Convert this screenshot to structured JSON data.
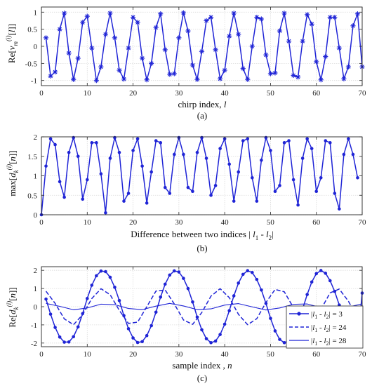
{
  "figure": {
    "captions": [
      "(a)",
      "(b)",
      "(c)"
    ]
  },
  "chart_data": [
    {
      "type": "line",
      "marker": "asterisk",
      "color": "#1f24d6",
      "xlabel": "chirp index,  l",
      "ylabel": "Re[v_m^(i)[l]]",
      "xlim": [
        0,
        70
      ],
      "ylim": [
        -1.15,
        1.15
      ],
      "xticks": [
        0,
        10,
        20,
        30,
        40,
        50,
        60,
        70
      ],
      "yticks": [
        -1,
        -0.5,
        0,
        0.5,
        1
      ],
      "x": [
        1,
        2,
        3,
        4,
        5,
        6,
        7,
        8,
        9,
        10,
        11,
        12,
        13,
        14,
        15,
        16,
        17,
        18,
        19,
        20,
        21,
        22,
        23,
        24,
        25,
        26,
        27,
        28,
        29,
        30,
        31,
        32,
        33,
        34,
        35,
        36,
        37,
        38,
        39,
        40,
        41,
        42,
        43,
        44,
        45,
        46,
        47,
        48,
        49,
        50,
        51,
        52,
        53,
        54,
        55,
        56,
        57,
        58,
        59,
        60,
        61,
        62,
        63,
        64,
        65,
        66,
        67,
        68,
        69,
        70
      ],
      "series": [
        {
          "values": [
            0.25,
            -0.87,
            -0.75,
            0.5,
            0.97,
            -0.2,
            -0.97,
            -0.35,
            0.7,
            0.88,
            -0.05,
            -1.0,
            -0.6,
            0.35,
            0.97,
            0.25,
            -0.7,
            -0.96,
            -0.05,
            0.85,
            0.7,
            -0.35,
            -0.98,
            -0.5,
            0.55,
            0.95,
            -0.1,
            -0.82,
            -0.8,
            0.25,
            0.98,
            0.45,
            -0.55,
            -0.97,
            -0.15,
            0.75,
            0.85,
            -0.1,
            -0.95,
            -0.7,
            0.3,
            0.97,
            0.35,
            -0.65,
            -0.97,
            0.0,
            0.85,
            0.8,
            -0.25,
            -0.8,
            -0.78,
            0.45,
            0.97,
            0.15,
            -0.85,
            -0.9,
            0.15,
            0.93,
            0.65,
            -0.45,
            -0.98,
            -0.3,
            0.85,
            0.85,
            -0.05,
            -0.95,
            -0.6,
            0.6,
            0.95,
            -0.6
          ]
        }
      ],
      "caption": "(a)"
    },
    {
      "type": "line",
      "marker": "dot",
      "color": "#1f24d6",
      "xlabel": "Difference between two indices | l_1 - l_2|",
      "ylabel": "max[d_k^(i)[n]]",
      "xlim": [
        0,
        70
      ],
      "ylim": [
        0,
        2
      ],
      "xticks": [
        0,
        10,
        20,
        30,
        40,
        50,
        60,
        70
      ],
      "yticks": [
        0,
        0.5,
        1,
        1.5,
        2
      ],
      "x": [
        0,
        1,
        2,
        3,
        4,
        5,
        6,
        7,
        8,
        9,
        10,
        11,
        12,
        13,
        14,
        15,
        16,
        17,
        18,
        19,
        20,
        21,
        22,
        23,
        24,
        25,
        26,
        27,
        28,
        29,
        30,
        31,
        32,
        33,
        34,
        35,
        36,
        37,
        38,
        39,
        40,
        41,
        42,
        43,
        44,
        45,
        46,
        47,
        48,
        49,
        50,
        51,
        52,
        53,
        54,
        55,
        56,
        57,
        58,
        59,
        60,
        61,
        62,
        63,
        64,
        65,
        66,
        67,
        68,
        69
      ],
      "series": [
        {
          "values": [
            0.0,
            1.25,
            1.95,
            1.8,
            0.85,
            0.45,
            1.6,
            1.98,
            1.5,
            0.4,
            0.9,
            1.85,
            1.85,
            1.05,
            0.05,
            1.45,
            1.98,
            1.6,
            0.35,
            0.55,
            1.65,
            1.95,
            1.25,
            0.3,
            1.1,
            1.9,
            1.85,
            0.7,
            0.55,
            1.55,
            1.98,
            1.55,
            0.7,
            0.6,
            1.6,
            1.98,
            1.45,
            0.5,
            0.75,
            1.7,
            1.95,
            1.3,
            0.35,
            1.1,
            1.9,
            1.95,
            0.95,
            0.35,
            1.4,
            1.98,
            1.65,
            0.6,
            0.75,
            1.85,
            1.9,
            0.9,
            0.25,
            1.45,
            1.95,
            1.7,
            0.6,
            0.95,
            1.9,
            1.85,
            0.55,
            0.15,
            1.55,
            1.95,
            1.55,
            0.95
          ]
        }
      ],
      "caption": "(b)"
    },
    {
      "type": "line",
      "xlabel": "sample index ,  n",
      "ylabel": "Re[d_k^(i)[n]]",
      "xlim": [
        0,
        70
      ],
      "ylim": [
        -2.2,
        2.2
      ],
      "xticks": [
        0,
        10,
        20,
        30,
        40,
        50,
        60,
        70
      ],
      "yticks": [
        -2,
        -1,
        0,
        1,
        2
      ],
      "legend_position": "right",
      "series": [
        {
          "name": "|l_1 - l_2| = 3",
          "style": "solid-dot",
          "color": "#1f24d6",
          "x": [
            1,
            2,
            3,
            4,
            5,
            6,
            7,
            8,
            9,
            10,
            11,
            12,
            13,
            14,
            15,
            16,
            17,
            18,
            19,
            20,
            21,
            22,
            23,
            24,
            25,
            26,
            27,
            28,
            29,
            30,
            31,
            32,
            33,
            34,
            35,
            36,
            37,
            38,
            39,
            40,
            41,
            42,
            43,
            44,
            45,
            46,
            47,
            48,
            49,
            50,
            51,
            52,
            53,
            54,
            55,
            56,
            57,
            58,
            59,
            60,
            61,
            62,
            63,
            64,
            65,
            66,
            67,
            68,
            69,
            70
          ],
          "values": [
            0.42,
            -0.41,
            -1.14,
            -1.67,
            -1.95,
            -1.94,
            -1.65,
            -1.11,
            -0.38,
            0.45,
            1.18,
            1.7,
            1.96,
            1.93,
            1.62,
            1.07,
            0.34,
            -0.49,
            -1.21,
            -1.72,
            -1.97,
            -1.92,
            -1.59,
            -1.04,
            -0.3,
            0.53,
            1.24,
            1.74,
            1.97,
            1.91,
            1.56,
            1.0,
            0.26,
            -0.57,
            -1.27,
            -1.76,
            -1.98,
            -1.89,
            -1.53,
            -0.96,
            -0.22,
            0.6,
            1.3,
            1.78,
            1.98,
            1.88,
            1.5,
            0.92,
            0.18,
            -0.64,
            -1.33,
            -1.8,
            -1.98,
            -1.86,
            -1.46,
            -0.88,
            -0.13,
            0.67,
            1.36,
            1.82,
            1.99,
            1.84,
            1.43,
            0.84,
            0.09,
            -0.71,
            -1.39,
            -1.84,
            -1.99,
            0.75
          ]
        },
        {
          "name": "|l_1 - l_2| = 24",
          "style": "dashed",
          "color": "#1f24d6",
          "x": [
            1,
            3,
            5,
            7,
            9,
            11,
            13,
            15,
            17,
            19,
            21,
            23,
            25,
            27,
            29,
            31,
            33,
            35,
            37,
            39,
            41,
            43,
            45,
            47,
            49,
            51,
            53,
            55,
            57,
            59,
            61,
            63,
            65,
            67,
            69,
            70
          ],
          "values": [
            0.85,
            0.18,
            -0.67,
            -0.99,
            -0.44,
            0.45,
            0.99,
            0.66,
            -0.2,
            -0.92,
            -0.85,
            0.0,
            0.86,
            0.92,
            0.15,
            -0.73,
            -0.97,
            -0.32,
            0.58,
            0.99,
            0.5,
            -0.42,
            -0.99,
            -0.66,
            0.23,
            0.95,
            0.82,
            -0.05,
            -0.88,
            -0.9,
            -0.15,
            0.76,
            0.97,
            0.3,
            -0.6,
            0.0
          ]
        },
        {
          "name": "|l_1 - l_2| = 28",
          "style": "solid",
          "color": "#1f24d6",
          "x": [
            1,
            4,
            7,
            10,
            13,
            16,
            19,
            22,
            25,
            28,
            31,
            34,
            37,
            40,
            43,
            46,
            49,
            52,
            55,
            58,
            61,
            64,
            67,
            70
          ],
          "values": [
            0.18,
            0.02,
            -0.17,
            -0.07,
            0.14,
            0.11,
            -0.1,
            -0.16,
            0.03,
            0.18,
            0.04,
            -0.16,
            -0.12,
            0.09,
            0.17,
            -0.01,
            -0.18,
            -0.07,
            0.13,
            0.15,
            -0.05,
            -0.17,
            -0.02,
            0.16
          ]
        }
      ],
      "caption": "(c)"
    }
  ]
}
